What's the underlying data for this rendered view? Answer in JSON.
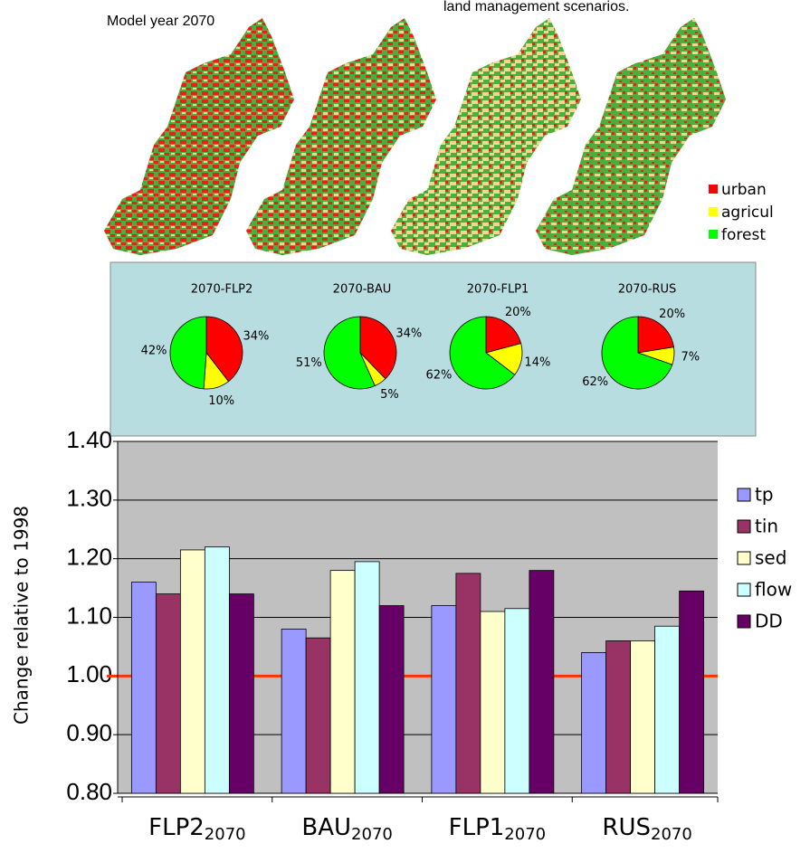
{
  "header": {
    "model_year": "Model year 2070",
    "caption": "land management scenarios."
  },
  "map_legend": [
    {
      "label": "urban",
      "color": "#ff0000"
    },
    {
      "label": "agricul",
      "color": "#ffff00"
    },
    {
      "label": "forest",
      "color": "#00ff00"
    }
  ],
  "chart_data": [
    {
      "type": "pie",
      "title": "2070-FLP2",
      "values": [
        34,
        10,
        42
      ],
      "value_labels": [
        "34%",
        "10%",
        "42%"
      ],
      "colors": [
        "#ff0000",
        "#ffff00",
        "#00ff00"
      ]
    },
    {
      "type": "pie",
      "title": "2070-BAU",
      "values": [
        34,
        5,
        51
      ],
      "value_labels": [
        "34%",
        "5%",
        "51%"
      ],
      "colors": [
        "#ff0000",
        "#ffff00",
        "#00ff00"
      ]
    },
    {
      "type": "pie",
      "title": "2070-FLP1",
      "values": [
        20,
        14,
        62
      ],
      "value_labels": [
        "20%",
        "14%",
        "62%"
      ],
      "colors": [
        "#ff0000",
        "#ffff00",
        "#00ff00"
      ]
    },
    {
      "type": "pie",
      "title": "2070-RUS",
      "values": [
        20,
        7,
        62
      ],
      "value_labels": [
        "20%",
        "7%",
        "62%"
      ],
      "colors": [
        "#ff0000",
        "#ffff00",
        "#00ff00"
      ]
    },
    {
      "type": "bar",
      "ylabel": "Change relative to 1998",
      "categories": [
        "FLP2",
        "BAU",
        "FLP1",
        "RUS"
      ],
      "category_subscript": "2070",
      "series": [
        {
          "name": "tp",
          "color": "#9999ff",
          "values": [
            1.16,
            1.08,
            1.12,
            1.04
          ]
        },
        {
          "name": "tin",
          "color": "#993366",
          "values": [
            1.14,
            1.065,
            1.175,
            1.06
          ]
        },
        {
          "name": "sed",
          "color": "#ffffcc",
          "values": [
            1.215,
            1.18,
            1.11,
            1.06
          ]
        },
        {
          "name": "flow",
          "color": "#ccffff",
          "values": [
            1.22,
            1.195,
            1.115,
            1.085
          ]
        },
        {
          "name": "DD",
          "color": "#660066",
          "values": [
            1.14,
            1.12,
            1.18,
            1.145
          ]
        }
      ],
      "ylim": [
        0.8,
        1.4
      ],
      "yticks": [
        {
          "value": 0.8,
          "label": "0.80"
        },
        {
          "value": 0.9,
          "label": "0.90"
        },
        {
          "value": 1.0,
          "label": "1.00"
        },
        {
          "value": 1.1,
          "label": "1.10"
        },
        {
          "value": 1.2,
          "label": "1.20"
        },
        {
          "value": 1.3,
          "label": "1.30"
        },
        {
          "value": 1.4,
          "label": "1.40"
        }
      ],
      "grid": true,
      "plot_background": "#c0c0c0",
      "reference_line": {
        "value": 1.0,
        "color": "#ff3300"
      }
    }
  ]
}
